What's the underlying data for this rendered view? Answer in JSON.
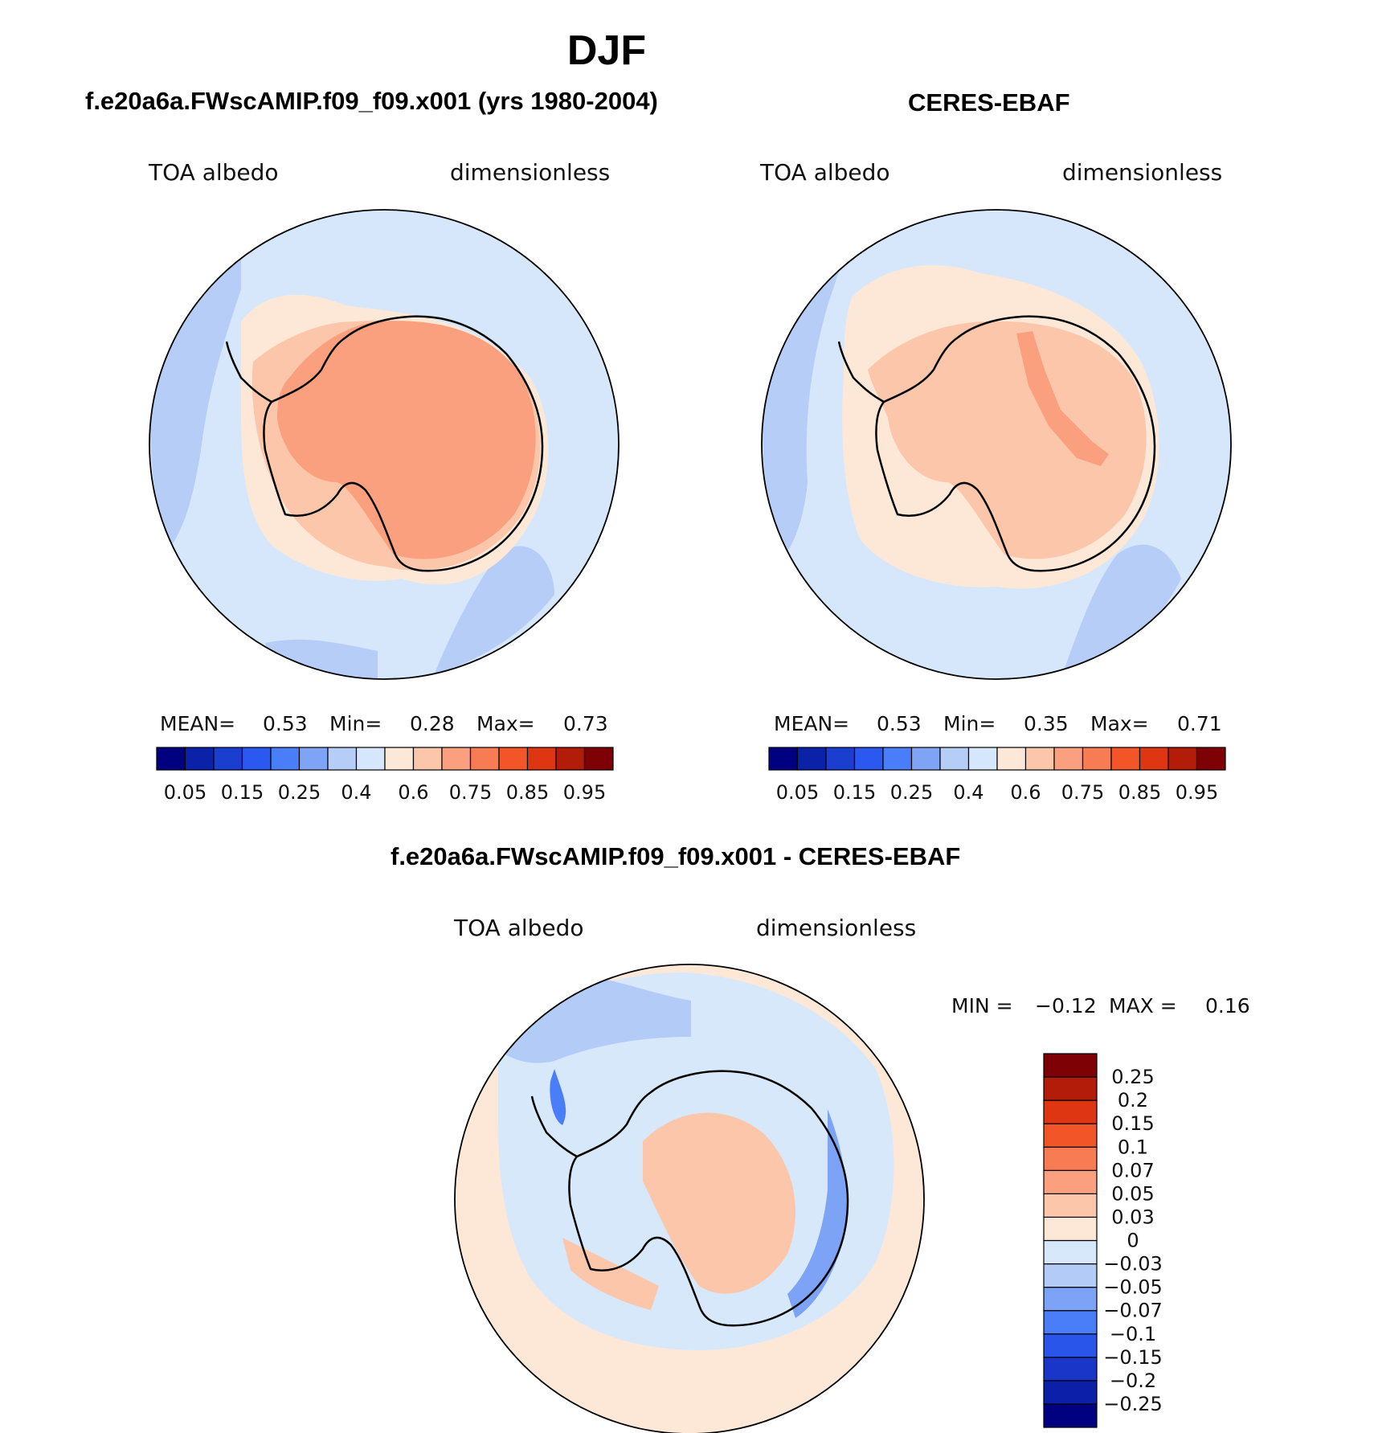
{
  "main_title": "DJF",
  "panels": [
    {
      "title": "f.e20a6a.FWscAMIP.f09_f09.x001 (yrs 1980-2004)",
      "variable": "TOA albedo",
      "units": "dimensionless",
      "stats": {
        "mean_label": "MEAN=",
        "mean": "0.53",
        "min_label": "Min=",
        "min": "0.28",
        "max_label": "Max=",
        "max": "0.73"
      }
    },
    {
      "title": "CERES-EBAF",
      "variable": "TOA albedo",
      "units": "dimensionless",
      "stats": {
        "mean_label": "MEAN=",
        "mean": "0.53",
        "min_label": "Min=",
        "min": "0.35",
        "max_label": "Max=",
        "max": "0.71"
      }
    },
    {
      "title": "f.e20a6a.FWscAMIP.f09_f09.x001 - CERES-EBAF",
      "variable": "TOA albedo",
      "units": "dimensionless",
      "stats": {
        "min_label": "MIN =",
        "min": "−0.12",
        "max_label": "MAX =",
        "max": "0.16"
      }
    }
  ],
  "colorbars": {
    "absolute": {
      "colors": [
        "#000080",
        "#0a22a8",
        "#1a3fd0",
        "#2a58f0",
        "#4a7ef8",
        "#7fa4f6",
        "#b5cdf7",
        "#d6e7fb",
        "#fde8d8",
        "#fcc6ab",
        "#fba07e",
        "#f77b53",
        "#f25528",
        "#de3613",
        "#b31c09",
        "#7e0205"
      ],
      "tick_labels": [
        "0.05",
        "0.15",
        "0.25",
        "0.4",
        "0.6",
        "0.75",
        "0.85",
        "0.95"
      ]
    },
    "difference": {
      "colors": [
        "#000080",
        "#0c1fa8",
        "#1936c8",
        "#2a55ea",
        "#4a7ef8",
        "#7ca3f6",
        "#b3ccf7",
        "#d8e8fb",
        "#fde8d8",
        "#fcc6ab",
        "#fba07e",
        "#f77b53",
        "#f25528",
        "#de3613",
        "#b31c09",
        "#7e0205"
      ],
      "tick_labels": [
        "0.25",
        "0.2",
        "0.15",
        "0.1",
        "0.07",
        "0.05",
        "0.03",
        "0",
        "−0.03",
        "−0.05",
        "−0.07",
        "−0.1",
        "−0.15",
        "−0.2",
        "−0.25"
      ]
    }
  }
}
